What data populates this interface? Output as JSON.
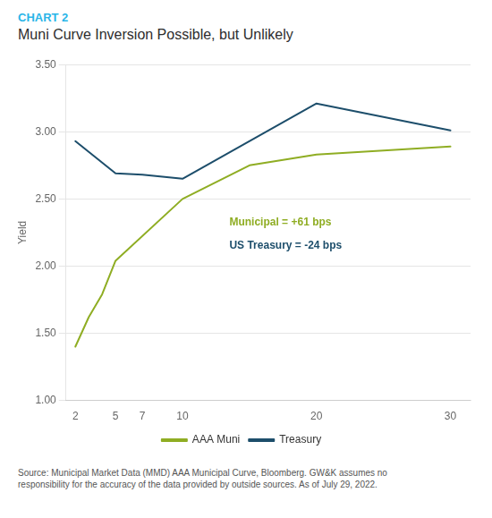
{
  "chart_data": {
    "type": "line",
    "subtitle": "CHART 2",
    "subtitle_color": "#29b5e8",
    "title": "Muni Curve Inversion Possible, but Unlikely",
    "ylabel": "Yield",
    "source": "Source: Municipal Market Data (MMD) AAA Municipal Curve, Bloomberg. GW&K assumes no\nresponsibility for the accuracy of the data provided by outside sources. As of July 29, 2022.",
    "series": [
      {
        "name": "AAA Muni",
        "color": "#8fad23",
        "x": [
          2,
          3,
          4,
          5,
          10,
          15,
          20,
          30
        ],
        "values": [
          1.4,
          1.62,
          1.79,
          2.04,
          2.5,
          2.75,
          2.83,
          2.89
        ]
      },
      {
        "name": "Treasury",
        "color": "#1d4e6b",
        "x": [
          2,
          5,
          7,
          10,
          20,
          30
        ],
        "values": [
          2.93,
          2.69,
          2.68,
          2.65,
          3.21,
          3.01
        ]
      }
    ],
    "xlim": [
      1.3,
      31.5
    ],
    "xticks": [
      2,
      5,
      7,
      10,
      20,
      30
    ],
    "ylim": [
      1.0,
      3.5
    ],
    "yticks": [
      {
        "value": 1.0,
        "label": "1.00"
      },
      {
        "value": 1.5,
        "label": "1.50"
      },
      {
        "value": 2.0,
        "label": "2.00"
      },
      {
        "value": 2.5,
        "label": "2.50"
      },
      {
        "value": 3.0,
        "label": "3.00"
      },
      {
        "value": 3.5,
        "label": "3.50"
      }
    ],
    "annotations": [
      {
        "text": "Municipal = +61 bps",
        "x": 13.5,
        "y": 2.3,
        "color": "#8fad23"
      },
      {
        "text": "US Treasury = -24 bps",
        "x": 13.5,
        "y": 2.13,
        "color": "#1d4e6b"
      }
    ],
    "grid": "y",
    "legend": "bottom"
  }
}
